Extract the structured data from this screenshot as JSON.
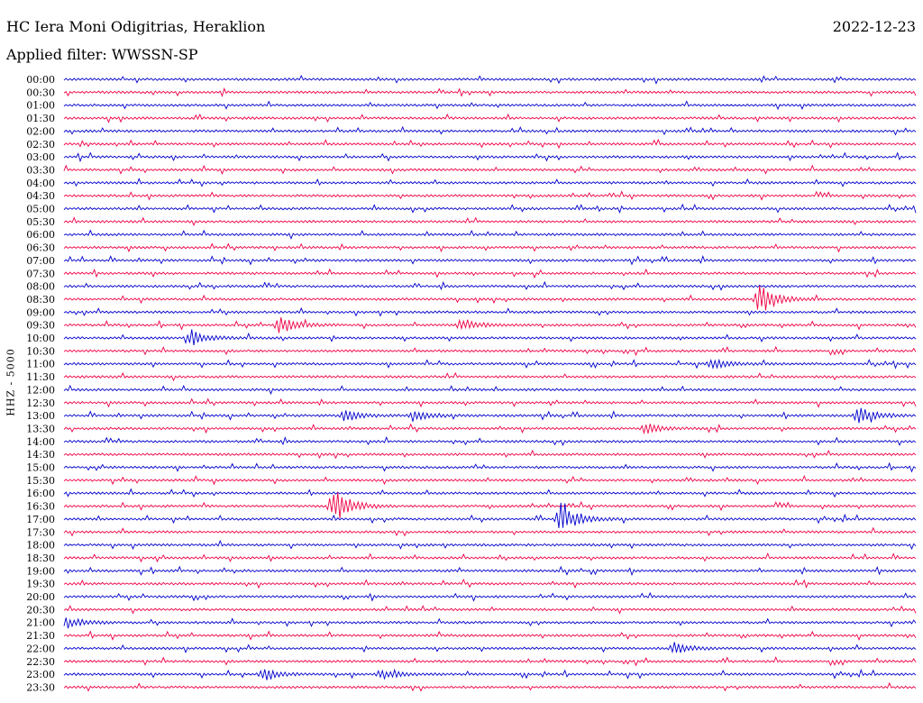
{
  "header": {
    "station": "HC Iera Moni Odigitrias, Heraklion",
    "date": "2022-12-23",
    "filter": "Applied filter: WWSSN-SP"
  },
  "colors": {
    "even_trace": "#0000cc",
    "odd_trace": "#ee0044"
  },
  "chart_data": {
    "type": "line",
    "chart_kind": "helicorder",
    "ylabel": "HHZ - 5000",
    "row_labels": [
      "00:00",
      "00:30",
      "01:00",
      "01:30",
      "02:00",
      "02:30",
      "03:00",
      "03:30",
      "04:00",
      "04:30",
      "05:00",
      "05:30",
      "06:00",
      "06:30",
      "07:00",
      "07:30",
      "08:00",
      "08:30",
      "09:00",
      "09:30",
      "10:00",
      "10:30",
      "11:00",
      "11:30",
      "12:00",
      "12:30",
      "13:00",
      "13:30",
      "14:00",
      "14:30",
      "15:00",
      "15:30",
      "16:00",
      "16:30",
      "17:00",
      "17:30",
      "18:00",
      "18:30",
      "19:00",
      "19:30",
      "20:00",
      "20:30",
      "21:00",
      "21:30",
      "22:00",
      "22:30",
      "23:00",
      "23:30"
    ],
    "row_minutes": 30,
    "trace_colors_alternate": [
      "blue",
      "red"
    ],
    "events": [
      {
        "row": "08:30",
        "minute": 24.5,
        "amplitude": "large"
      },
      {
        "row": "16:30",
        "minute": 9.5,
        "amplitude": "large"
      },
      {
        "row": "17:00",
        "minute": 17.5,
        "amplitude": "large"
      },
      {
        "row": "09:30",
        "minute": 7.6,
        "amplitude": "medium"
      },
      {
        "row": "09:30",
        "minute": 14.0,
        "amplitude": "small"
      },
      {
        "row": "10:00",
        "minute": 4.5,
        "amplitude": "medium"
      },
      {
        "row": "11:00",
        "minute": 22.8,
        "amplitude": "small"
      },
      {
        "row": "13:00",
        "minute": 9.9,
        "amplitude": "small"
      },
      {
        "row": "13:00",
        "minute": 12.3,
        "amplitude": "small"
      },
      {
        "row": "13:00",
        "minute": 28.0,
        "amplitude": "medium"
      },
      {
        "row": "13:30",
        "minute": 20.5,
        "amplitude": "small"
      },
      {
        "row": "21:00",
        "minute": 0.1,
        "amplitude": "small"
      },
      {
        "row": "22:00",
        "minute": 21.5,
        "amplitude": "small"
      },
      {
        "row": "23:00",
        "minute": 7.0,
        "amplitude": "small"
      },
      {
        "row": "23:00",
        "minute": 11.2,
        "amplitude": "small"
      }
    ]
  }
}
